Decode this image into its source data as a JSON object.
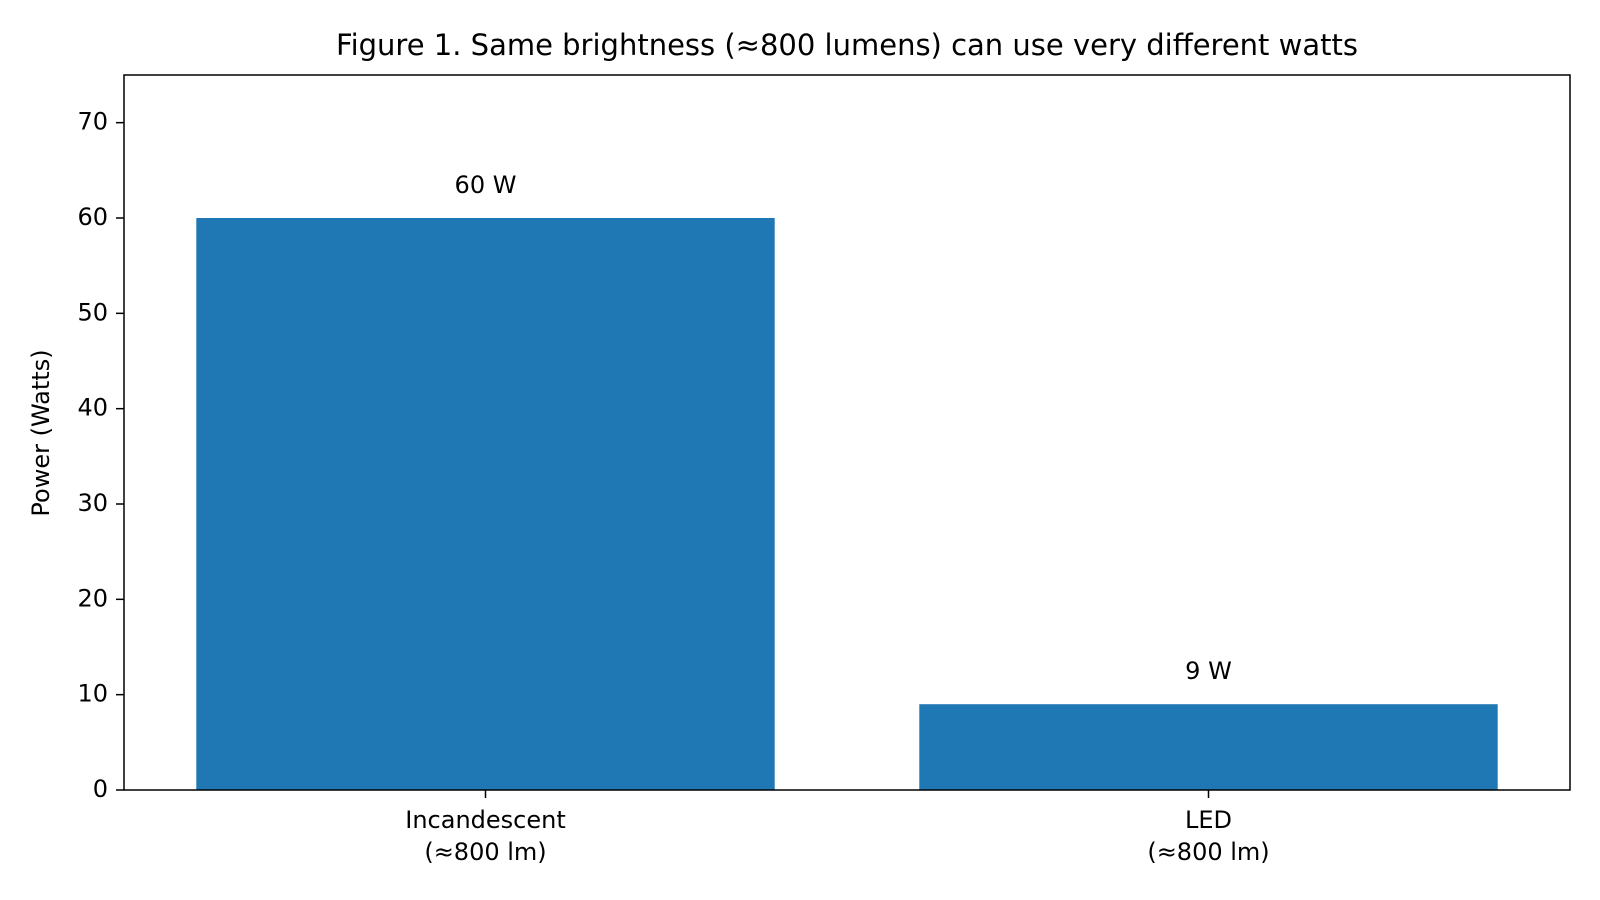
{
  "chart_data": {
    "type": "bar",
    "title": "Figure 1. Same brightness (≈800 lumens) can use very different watts",
    "y_label": "Power (Watts)",
    "categories": [
      "Incandescent\n(≈800 lm)",
      "LED\n(≈800 lm)"
    ],
    "values": [
      60,
      9
    ],
    "value_labels": [
      "60 W",
      "9 W"
    ],
    "color": "#1f77b4",
    "ylim": [
      0,
      75
    ],
    "yticks": [
      0,
      10,
      20,
      30,
      40,
      50,
      60,
      70
    ],
    "grid": false
  }
}
